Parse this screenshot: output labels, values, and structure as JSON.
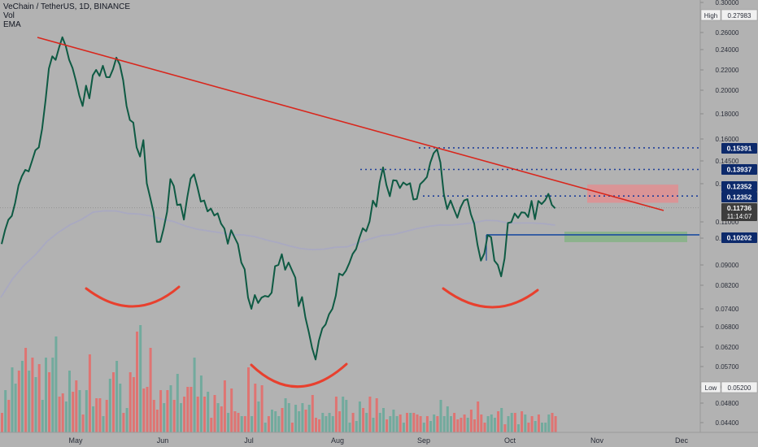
{
  "header": {
    "symbol_line": "VeChain / TetherUS, 1D, BINANCE",
    "indicator_vol": "Vol",
    "indicator_ema": "EMA"
  },
  "colors": {
    "background": "#b2b2b2",
    "price_line": "#0e5a43",
    "trendline": "#d9261c",
    "ema_line": "#a7a7c2",
    "arc": "#e8402e",
    "level_dotted": "#1f3f99",
    "level_solid": "#1d4da0",
    "label_bg": "#0d2a6b",
    "current_label_bg": "#3d3d3d",
    "volume_up": "#6aa89a",
    "volume_down": "#e36d6a",
    "zone_red": "#e7898c",
    "zone_green": "#7fb27f"
  },
  "chart_data": {
    "type": "line",
    "title": "VeChain / TetherUS, 1D, BINANCE",
    "x_ticks": [
      "May",
      "Jun",
      "Jul",
      "Aug",
      "Sep",
      "Oct",
      "Nov",
      "Dec"
    ],
    "y_ticks": [
      "0.30000",
      "0.26000",
      "0.24000",
      "0.22000",
      "0.20000",
      "0.18000",
      "0.16000",
      "0.14500",
      "0.13000",
      "0.11000",
      "0.10000",
      "0.09000",
      "0.08200",
      "0.07400",
      "0.06800",
      "0.06200",
      "0.05700",
      "0.05200",
      "0.04800",
      "0.04400"
    ],
    "axis_labels": {
      "high_label": "High",
      "high_value": "0.27983",
      "low_label": "Low",
      "low_value": "0.05200",
      "current_price": "0.11736",
      "countdown": "11:14:07"
    },
    "levels": [
      {
        "value": "0.15391",
        "style": "dotted"
      },
      {
        "value": "0.13937",
        "style": "dotted"
      },
      {
        "value": "0.12352",
        "style": "dotted"
      },
      {
        "value": "0.12352",
        "style": "zone"
      },
      {
        "value": "0.10202",
        "style": "solid"
      }
    ],
    "series": [
      {
        "values": [
          0.0978,
          0.1049,
          0.1111,
          0.1131,
          0.1199,
          0.1291,
          0.1349,
          0.1391,
          0.1381,
          0.145,
          0.1523,
          0.1542,
          0.1681,
          0.1914,
          0.2213,
          0.2334,
          0.2298,
          0.2423,
          0.2545,
          0.244,
          0.23,
          0.2218,
          0.2094,
          0.1956,
          0.1866,
          0.2045,
          0.1931,
          0.2146,
          0.22,
          0.2141,
          0.2241,
          0.2129,
          0.2128,
          0.2208,
          0.2321,
          0.2252,
          0.21,
          0.1867,
          0.1751,
          0.173,
          0.1542,
          0.148,
          0.1592,
          0.1302,
          0.1228,
          0.115,
          0.0986,
          0.0986,
          0.1059,
          0.1152,
          0.133,
          0.1288,
          0.1188,
          0.1192,
          0.1112,
          0.123,
          0.1333,
          0.1362,
          0.1283,
          0.1206,
          0.1212,
          0.1155,
          0.117,
          0.1133,
          0.1145,
          0.1089,
          0.1059,
          0.0979,
          0.1049,
          0.1005,
          0.0978,
          0.0909,
          0.0883,
          0.0778,
          0.074,
          0.0787,
          0.076,
          0.0778,
          0.0784,
          0.0781,
          0.0795,
          0.0895,
          0.09,
          0.094,
          0.0881,
          0.0909,
          0.088,
          0.085,
          0.0749,
          0.078,
          0.0711,
          0.0664,
          0.0617,
          0.0588,
          0.0639,
          0.0675,
          0.0688,
          0.0722,
          0.074,
          0.0785,
          0.0866,
          0.0859,
          0.0877,
          0.0907,
          0.0941,
          0.0959,
          0.1001,
          0.1061,
          0.1042,
          0.1102,
          0.1211,
          0.118,
          0.1308,
          0.1407,
          0.1293,
          0.1234,
          0.1323,
          0.132,
          0.1277,
          0.1308,
          0.1293,
          0.1303,
          0.1217,
          0.122,
          0.1297,
          0.1318,
          0.1344,
          0.1439,
          0.1503,
          0.153,
          0.144,
          0.1245,
          0.1167,
          0.1212,
          0.1167,
          0.1122,
          0.1176,
          0.1212,
          0.1219,
          0.1141,
          0.109,
          0.0974,
          0.0916,
          0.0943,
          0.1018,
          0.1006,
          0.0916,
          0.09,
          0.0855,
          0.0924,
          0.1093,
          0.1098,
          0.1144,
          0.1121,
          0.115,
          0.1148,
          0.1125,
          0.121,
          0.1114,
          0.121,
          0.1193,
          0.1213,
          0.1247,
          0.1189,
          0.1171
        ]
      },
      {
        "values": [
          0.0779,
          0.0844,
          0.0898,
          0.0938,
          0.0988,
          0.1036,
          0.1082,
          0.1113,
          0.1151,
          0.1158,
          0.1157,
          0.1144,
          0.1141,
          0.1131,
          0.1114,
          0.1101,
          0.1074,
          0.1055,
          0.1044,
          0.1033,
          0.1021,
          0.102,
          0.1009,
          0.0993,
          0.0983,
          0.0971,
          0.0961,
          0.0957,
          0.0959,
          0.0966,
          0.0968,
          0.0983,
          0.0998,
          0.1016,
          0.1022,
          0.104,
          0.1058,
          0.1072,
          0.1081,
          0.108,
          0.1087,
          0.1095,
          0.1108,
          0.1106,
          0.1092,
          0.1093,
          0.1093,
          0.1089,
          0.108
        ]
      }
    ],
    "volume": {
      "values": [
        12,
        26,
        20,
        40,
        30,
        38,
        44,
        52,
        38,
        46,
        34,
        42,
        20,
        46,
        37,
        46,
        59,
        22,
        24,
        19,
        38,
        25,
        32,
        26,
        11,
        26,
        48,
        16,
        21,
        21,
        10,
        20,
        33,
        37,
        44,
        30,
        12,
        15,
        37,
        34,
        62,
        66,
        27,
        28,
        52,
        20,
        14,
        26,
        18,
        26,
        29,
        20,
        36,
        18,
        22,
        28,
        28,
        46,
        22,
        35,
        22,
        25,
        9,
        23,
        18,
        16,
        32,
        12,
        27,
        13,
        12,
        10,
        10,
        40,
        10,
        30,
        19,
        29,
        6,
        10,
        14,
        13,
        10,
        15,
        21,
        18,
        6,
        17,
        13,
        18,
        14,
        17,
        23,
        9,
        8,
        12,
        10,
        12,
        10,
        22,
        13,
        22,
        20,
        6,
        12,
        7,
        19,
        15,
        12,
        22,
        9,
        21,
        12,
        15,
        8,
        10,
        14,
        10,
        11,
        6,
        12,
        12,
        12,
        11,
        10,
        6,
        10,
        7,
        11,
        10,
        20,
        10,
        16,
        10,
        12,
        8,
        9,
        11,
        9,
        14,
        8,
        19,
        11,
        6,
        10,
        11,
        9,
        13,
        15,
        5,
        10,
        12,
        12,
        5,
        13,
        11,
        6,
        10,
        7,
        11,
        6,
        6,
        11,
        12,
        10
      ],
      "direction": [
        "d",
        "u",
        "d",
        "u",
        "u",
        "d",
        "u",
        "d",
        "u",
        "d",
        "u",
        "d",
        "u",
        "u",
        "d",
        "u",
        "u",
        "d",
        "d",
        "u",
        "u",
        "d",
        "d",
        "u",
        "d",
        "u",
        "d",
        "u",
        "d",
        "d",
        "u",
        "d",
        "u",
        "d",
        "u",
        "u",
        "d",
        "u",
        "d",
        "d",
        "d",
        "u",
        "d",
        "d",
        "d",
        "d",
        "d",
        "d",
        "u",
        "d",
        "u",
        "d",
        "u",
        "u",
        "d",
        "d",
        "d",
        "u",
        "d",
        "u",
        "d",
        "u",
        "d",
        "d",
        "u",
        "d",
        "d",
        "u",
        "d",
        "d",
        "d",
        "u",
        "d",
        "d",
        "u",
        "d",
        "u",
        "d",
        "u",
        "d",
        "u",
        "u",
        "u",
        "d",
        "u",
        "u",
        "d",
        "u",
        "u",
        "u",
        "d",
        "u",
        "d",
        "d",
        "d",
        "u",
        "u",
        "u",
        "u",
        "d",
        "d",
        "u",
        "u",
        "u",
        "d",
        "u",
        "u",
        "d",
        "u",
        "d",
        "u",
        "d",
        "u",
        "u",
        "d",
        "u",
        "u",
        "u",
        "d",
        "u",
        "d",
        "u",
        "d",
        "d",
        "d",
        "u",
        "d",
        "u",
        "u",
        "d",
        "u",
        "u",
        "u",
        "u",
        "d",
        "d",
        "d",
        "d",
        "u",
        "d",
        "d",
        "d",
        "d",
        "d",
        "u",
        "u",
        "u",
        "d",
        "u",
        "d",
        "u",
        "u",
        "d",
        "u",
        "d",
        "u",
        "d",
        "d",
        "u",
        "d",
        "u",
        "u",
        "u",
        "d",
        "d"
      ]
    }
  }
}
